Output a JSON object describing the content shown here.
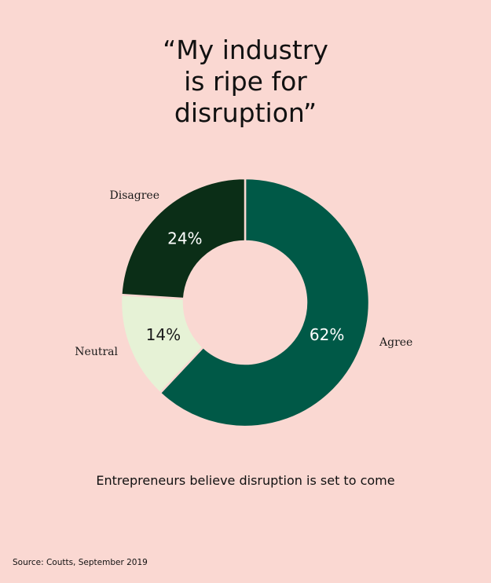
{
  "chart_data": {
    "type": "pie",
    "title_lines": [
      "“My industry",
      "is ripe for",
      "disruption”"
    ],
    "subtitle": "Entrepreneurs believe disruption is set to come",
    "source": "Source: Coutts, September 2019",
    "donut": true,
    "slices": [
      {
        "name": "Agree",
        "value": 62,
        "label": "62%",
        "color": "#005947",
        "label_color": "#ffffff"
      },
      {
        "name": "Neutral",
        "value": 14,
        "label": "14%",
        "color": "#e6f2d6",
        "label_color": "#1a1a1a"
      },
      {
        "name": "Disagree",
        "value": 24,
        "label": "24%",
        "color": "#0b2e17",
        "label_color": "#ffffff"
      }
    ]
  }
}
